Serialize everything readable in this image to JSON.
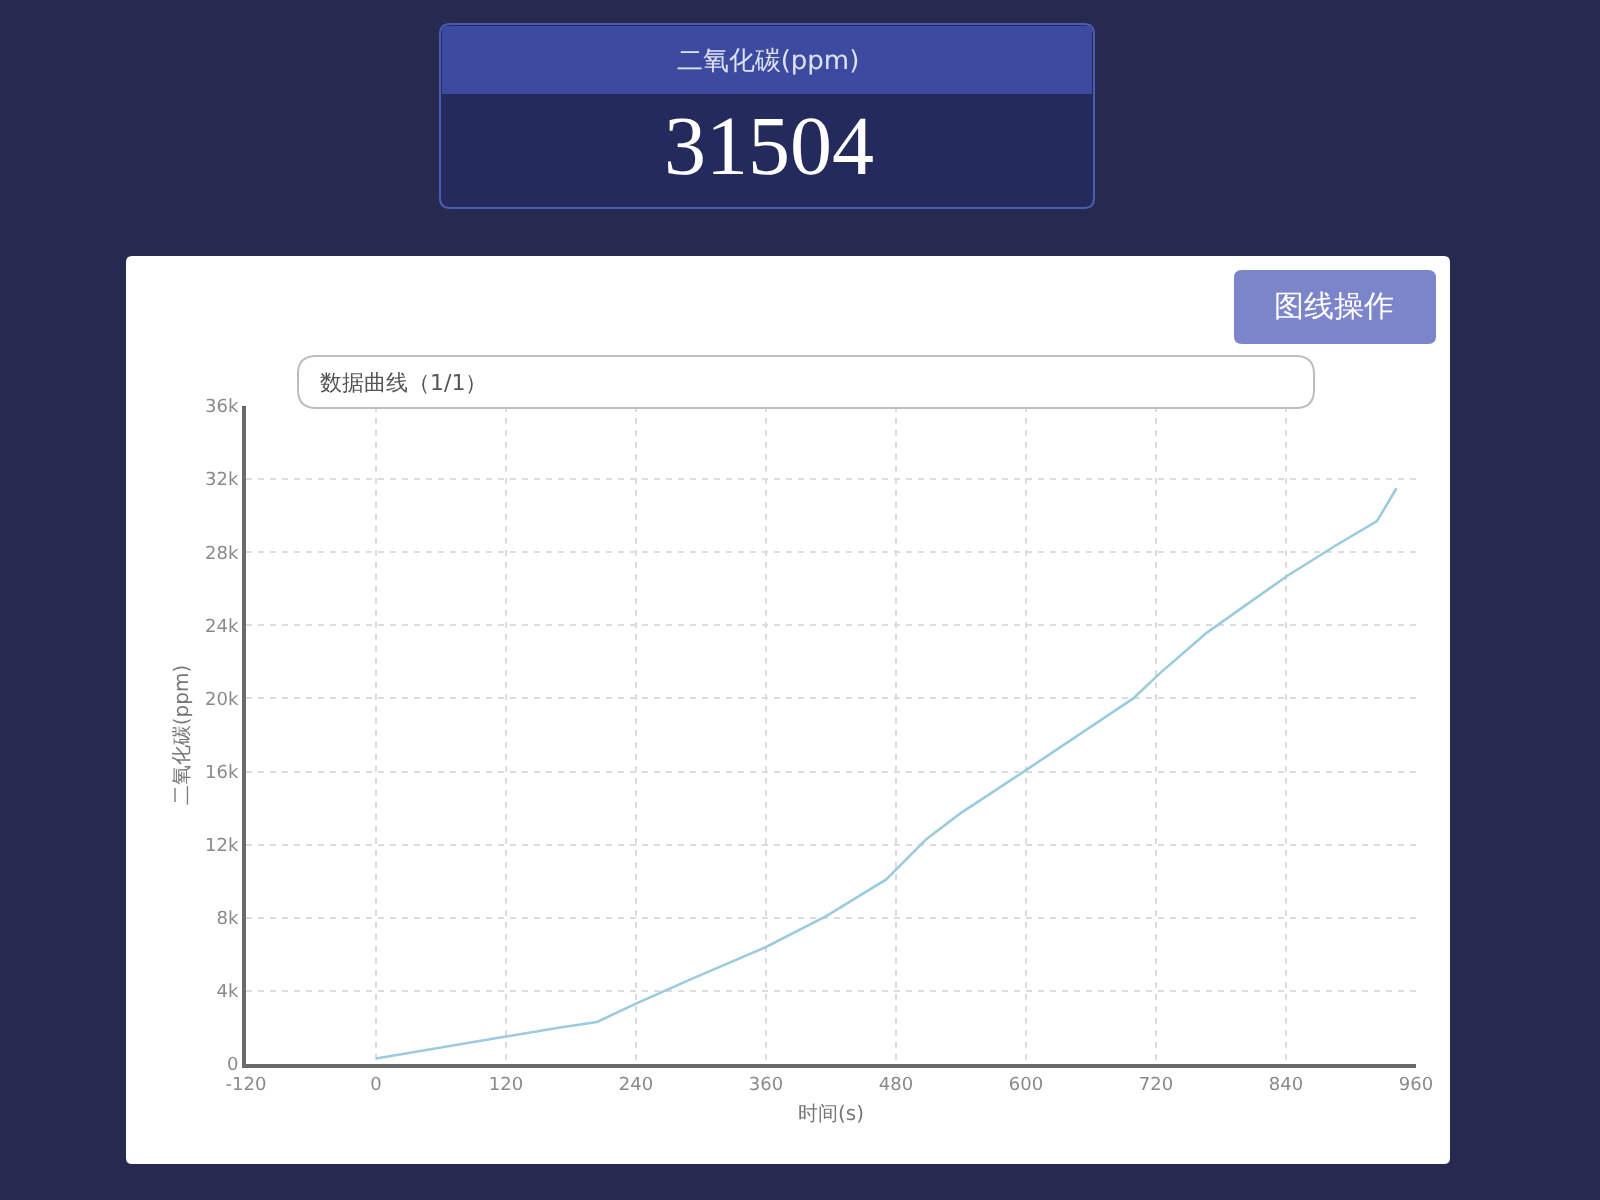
{
  "chart_data": {
    "type": "line",
    "title": "二氧化碳(ppm)",
    "xlabel": "时间(s)",
    "ylabel": "二氧化碳(ppm)",
    "annotations": [
      "31504",
      "图线操作",
      "数据曲线（1/1）"
    ],
    "x": [
      0,
      120,
      170,
      204,
      240,
      293,
      360,
      416,
      471,
      508,
      539,
      598,
      699,
      724,
      767,
      841,
      884,
      924,
      942
    ],
    "series": [
      {
        "color": "#9ccbdd",
        "values": [
          300,
          1500,
          2000,
          2300,
          3300,
          4700,
          6400,
          8100,
          10100,
          12300,
          13700,
          16000,
          20000,
          21400,
          23600,
          26700,
          28300,
          29700,
          31500
        ]
      }
    ],
    "xlim": [
      -120,
      960
    ],
    "xticks": [
      -120,
      0,
      120,
      240,
      360,
      480,
      600,
      720,
      840,
      960
    ],
    "ylim": [
      0,
      36000
    ],
    "yticks": [
      0,
      {
        "value": 4000,
        "label": "4k"
      },
      {
        "value": 8000,
        "label": "8k"
      },
      {
        "value": 12000,
        "label": "12k"
      },
      {
        "value": 16000,
        "label": "16k"
      },
      {
        "value": 20000,
        "label": "20k"
      },
      {
        "value": 24000,
        "label": "24k"
      },
      {
        "value": 28000,
        "label": "28k"
      },
      {
        "value": 32000,
        "label": "32k"
      },
      {
        "value": 36000,
        "label": "36k"
      }
    ],
    "grid": true
  }
}
